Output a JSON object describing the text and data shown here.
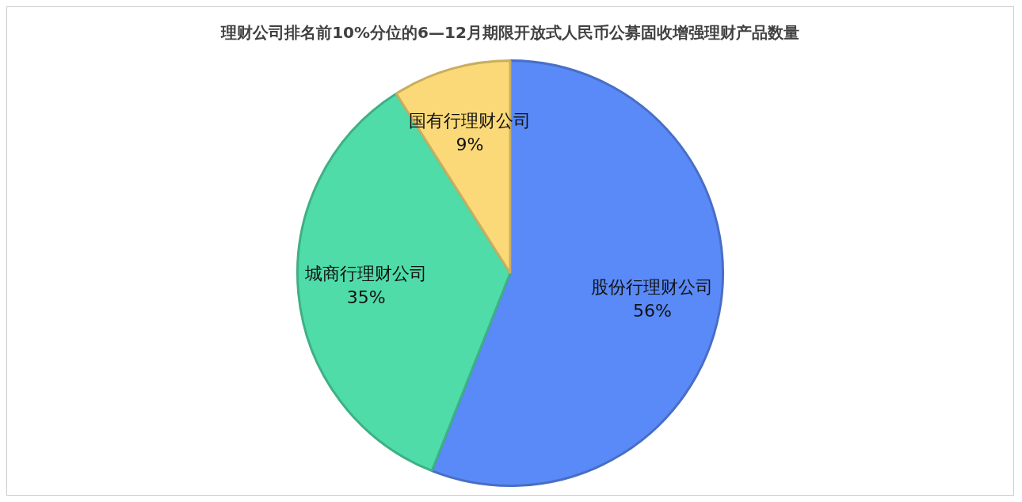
{
  "chart_data": {
    "type": "pie",
    "title": "理财公司排名前10%分位的6—12月期限开放式人民币公募固收增强理财产品数量",
    "categories": [
      "股份行理财公司",
      "城商行理财公司",
      "国有行理财公司"
    ],
    "values": [
      56,
      35,
      9
    ],
    "value_labels": [
      "56%",
      "35%",
      "9%"
    ],
    "colors": [
      "#5a8af7",
      "#4fdca8",
      "#fbd978"
    ],
    "legend": false
  }
}
